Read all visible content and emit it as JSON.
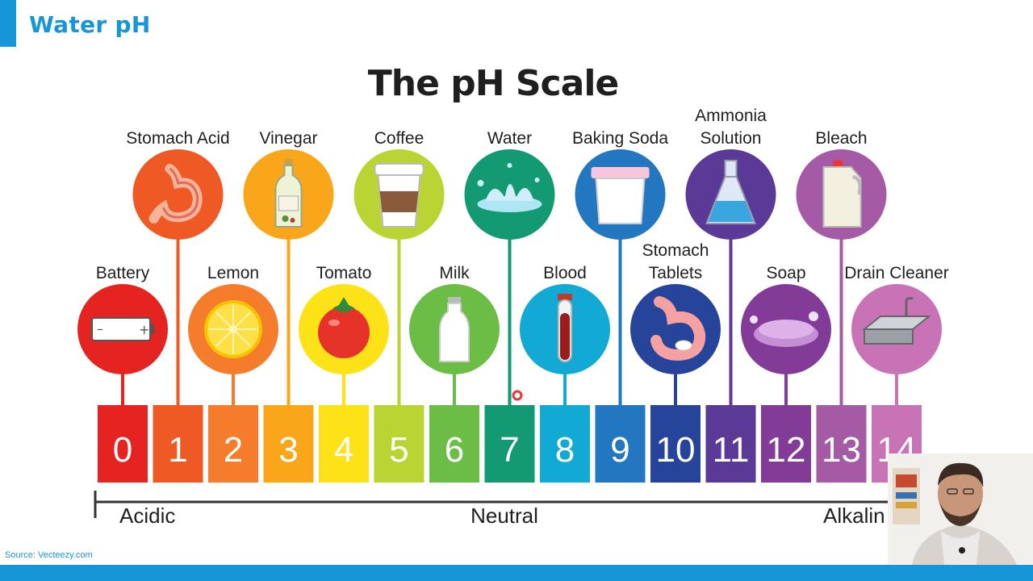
{
  "header": {
    "title": "Water pH"
  },
  "diagram": {
    "title": "The pH Scale",
    "scale": [
      {
        "value": "0",
        "color": "#e52421"
      },
      {
        "value": "1",
        "color": "#ef5a24"
      },
      {
        "value": "2",
        "color": "#f47c2a"
      },
      {
        "value": "3",
        "color": "#f9a61b"
      },
      {
        "value": "4",
        "color": "#fde218"
      },
      {
        "value": "5",
        "color": "#b9d433"
      },
      {
        "value": "6",
        "color": "#6cbd45"
      },
      {
        "value": "7",
        "color": "#139a73"
      },
      {
        "value": "8",
        "color": "#12a9d5"
      },
      {
        "value": "9",
        "color": "#2377c0"
      },
      {
        "value": "10",
        "color": "#27449b"
      },
      {
        "value": "11",
        "color": "#5b3a97"
      },
      {
        "value": "12",
        "color": "#823c98"
      },
      {
        "value": "13",
        "color": "#a45aa5"
      },
      {
        "value": "14",
        "color": "#c873b6"
      }
    ],
    "upper_items": [
      {
        "ph": 1,
        "label": [
          "Stomach Acid"
        ],
        "icon": "stomach-icon"
      },
      {
        "ph": 3,
        "label": [
          "Vinegar"
        ],
        "icon": "vinegar-bottle-icon"
      },
      {
        "ph": 5,
        "label": [
          "Coffee"
        ],
        "icon": "coffee-cup-icon"
      },
      {
        "ph": 7,
        "label": [
          "Water"
        ],
        "icon": "water-splash-icon"
      },
      {
        "ph": 9,
        "label": [
          "Baking Soda"
        ],
        "icon": "baking-soda-tub-icon"
      },
      {
        "ph": 11,
        "label": [
          "Ammonia",
          "Solution"
        ],
        "icon": "flask-icon"
      },
      {
        "ph": 13,
        "label": [
          "Bleach"
        ],
        "icon": "bleach-jug-icon"
      }
    ],
    "lower_items": [
      {
        "ph": 0,
        "label": [
          "Battery"
        ],
        "icon": "battery-icon"
      },
      {
        "ph": 2,
        "label": [
          "Lemon"
        ],
        "icon": "lemon-icon"
      },
      {
        "ph": 4,
        "label": [
          "Tomato"
        ],
        "icon": "tomato-icon"
      },
      {
        "ph": 6,
        "label": [
          "Milk"
        ],
        "icon": "milk-bottle-icon"
      },
      {
        "ph": 8,
        "label": [
          "Blood"
        ],
        "icon": "blood-tube-icon"
      },
      {
        "ph": 10,
        "label": [
          "Stomach",
          "Tablets"
        ],
        "icon": "stomach-tablet-icon"
      },
      {
        "ph": 12,
        "label": [
          "Soap"
        ],
        "icon": "soap-icon"
      },
      {
        "ph": 14,
        "label": [
          "Drain Cleaner"
        ],
        "icon": "sink-icon"
      }
    ],
    "axis_labels": {
      "left": "Acidic",
      "center": "Neutral",
      "right": "Alkalin"
    }
  },
  "source": "Source: Vecteezy.com"
}
